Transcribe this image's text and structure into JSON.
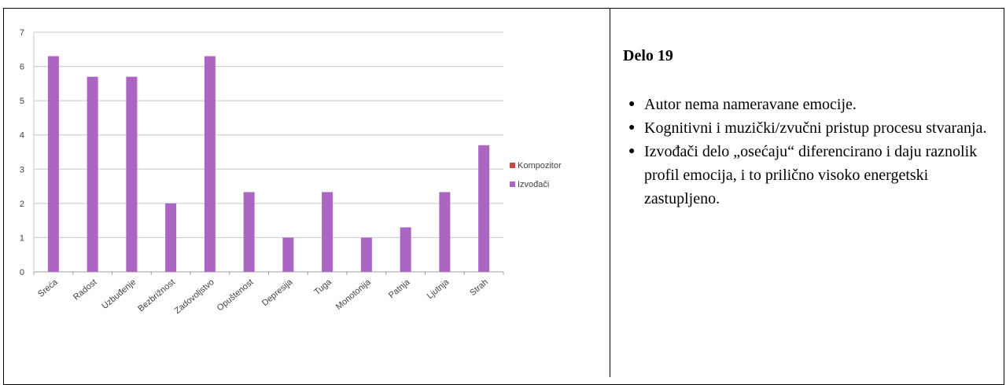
{
  "chart_data": {
    "type": "bar",
    "categories": [
      "Sreća",
      "Radost",
      "Uzbuđenje",
      "Bezbrižnost",
      "Zadovoljstvo",
      "Opuštenost",
      "Depresija",
      "Tuga",
      "Monotonija",
      "Patnja",
      "Ljutnja",
      "Strah"
    ],
    "series": [
      {
        "name": "Kompozitor",
        "color": "#be4b48",
        "values": [
          0,
          0,
          0,
          0,
          0,
          0,
          0,
          0,
          0,
          0,
          0,
          0
        ]
      },
      {
        "name": "Izvođači",
        "color": "#aa66c2",
        "values": [
          6.3,
          5.7,
          5.7,
          2.0,
          6.3,
          2.33,
          1.0,
          2.33,
          1.0,
          1.3,
          2.33,
          3.7
        ]
      }
    ],
    "yticks": [
      "0",
      "1",
      "2",
      "3",
      "4",
      "5",
      "6",
      "7"
    ],
    "ylim": [
      0,
      7
    ],
    "grid": true,
    "legend": "right"
  },
  "panel": {
    "title": "Delo 19",
    "bullets": [
      "Autor nema nameravane emocije.",
      "Kognitivni  i muzički/zvučni pristup procesu stvaranja.",
      "Izvođači delo „osećaju“ diferencirano i daju raznolik profil emocija, i to prilično visoko energetski zastupljeno."
    ]
  }
}
